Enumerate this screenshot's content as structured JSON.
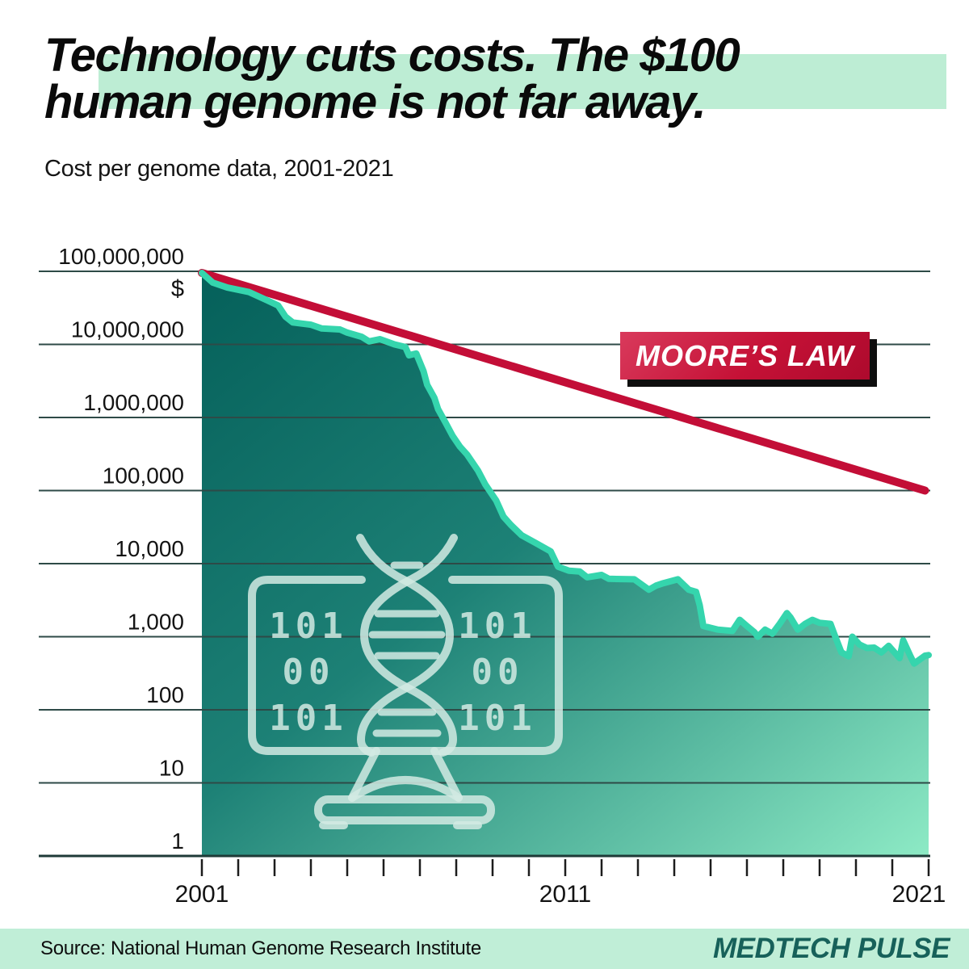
{
  "header": {
    "title_line1": "Technology cuts costs. The $100",
    "title_line2": "human genome is not far away.",
    "subtitle": "Cost per genome data, 2001-2021"
  },
  "moore_label": "MOORE’S LAW",
  "footer": {
    "source": "Source: National Human Genome Research Institute",
    "brand": "MEDTECH PULSE"
  },
  "icon": {
    "name": "dna-computer-icon",
    "binary_rows": [
      "101",
      "00",
      "101"
    ]
  },
  "theme": {
    "mint_highlight": "#bdedd4",
    "area_gradient_dark": "#05605a",
    "area_gradient_mid": "#1d8176",
    "area_gradient_light": "#8deac5",
    "curve_stroke": "#35d5ad",
    "moore_red": "#c30e37",
    "grid_color": "#2e4a47",
    "baseline_color": "#1e3a37",
    "axis_text": "#131313",
    "icon_stroke": "rgba(210,234,227,0.85)",
    "brand_color": "#17615a"
  },
  "chart_data": {
    "type": "area",
    "title": "Cost per genome data, 2001-2021",
    "x_axis": {
      "range": [
        2001,
        2021
      ],
      "tick_interval": 1,
      "labeled_ticks": [
        "2001",
        "2011",
        "2021"
      ],
      "labeled_tick_years": [
        2001,
        2011,
        2021
      ]
    },
    "y_axis": {
      "scale": "log",
      "unit": "$",
      "range": [
        1,
        100000000
      ],
      "ticks": [
        "1",
        "10",
        "100",
        "1,000",
        "10,000",
        "100,000",
        "1,000,000",
        "10,000,000",
        "100,000,000"
      ]
    },
    "grid": true,
    "legend": "none",
    "series": [
      {
        "name": "Cost per genome",
        "type": "area",
        "points": [
          [
            2001.0,
            95000000
          ],
          [
            2001.3,
            70000000
          ],
          [
            2001.7,
            60000000
          ],
          [
            2002.3,
            52000000
          ],
          [
            2002.8,
            40000000
          ],
          [
            2003.1,
            34000000
          ],
          [
            2003.3,
            24000000
          ],
          [
            2003.5,
            20000000
          ],
          [
            2004.0,
            18600000
          ],
          [
            2004.3,
            16500000
          ],
          [
            2004.8,
            16000000
          ],
          [
            2005.0,
            14500000
          ],
          [
            2005.4,
            12700000
          ],
          [
            2005.6,
            11000000
          ],
          [
            2005.9,
            11800000
          ],
          [
            2006.3,
            10000000
          ],
          [
            2006.6,
            9200000
          ],
          [
            2006.7,
            7100000
          ],
          [
            2006.9,
            7500000
          ],
          [
            2007.1,
            4300000
          ],
          [
            2007.2,
            2800000
          ],
          [
            2007.4,
            1850000
          ],
          [
            2007.5,
            1300000
          ],
          [
            2007.7,
            860000
          ],
          [
            2007.9,
            560000
          ],
          [
            2008.1,
            400000
          ],
          [
            2008.3,
            310000
          ],
          [
            2008.6,
            187000
          ],
          [
            2008.8,
            121000
          ],
          [
            2009.1,
            73000
          ],
          [
            2009.3,
            44000
          ],
          [
            2009.5,
            34000
          ],
          [
            2009.8,
            24400
          ],
          [
            2010.2,
            19000
          ],
          [
            2010.6,
            14700
          ],
          [
            2010.8,
            9100
          ],
          [
            2011.1,
            8000
          ],
          [
            2011.4,
            7800
          ],
          [
            2011.6,
            6500
          ],
          [
            2012.0,
            7000
          ],
          [
            2012.2,
            6200
          ],
          [
            2012.9,
            6100
          ],
          [
            2013.3,
            4400
          ],
          [
            2013.5,
            5000
          ],
          [
            2013.7,
            5400
          ],
          [
            2014.1,
            6100
          ],
          [
            2014.4,
            4400
          ],
          [
            2014.6,
            4100
          ],
          [
            2014.7,
            2700
          ],
          [
            2014.8,
            1400
          ],
          [
            2015.2,
            1250
          ],
          [
            2015.6,
            1200
          ],
          [
            2015.8,
            1700
          ],
          [
            2016.0,
            1400
          ],
          [
            2016.2,
            1160
          ],
          [
            2016.3,
            1000
          ],
          [
            2016.5,
            1250
          ],
          [
            2016.7,
            1100
          ],
          [
            2016.9,
            1500
          ],
          [
            2017.1,
            2100
          ],
          [
            2017.2,
            1830
          ],
          [
            2017.4,
            1250
          ],
          [
            2017.6,
            1500
          ],
          [
            2017.8,
            1700
          ],
          [
            2018.0,
            1550
          ],
          [
            2018.3,
            1500
          ],
          [
            2018.4,
            1100
          ],
          [
            2018.6,
            610
          ],
          [
            2018.8,
            540
          ],
          [
            2018.9,
            1000
          ],
          [
            2019.1,
            780
          ],
          [
            2019.3,
            700
          ],
          [
            2019.5,
            710
          ],
          [
            2019.7,
            610
          ],
          [
            2019.9,
            750
          ],
          [
            2020.2,
            510
          ],
          [
            2020.3,
            890
          ],
          [
            2020.5,
            540
          ],
          [
            2020.6,
            430
          ],
          [
            2020.9,
            550
          ],
          [
            2021.0,
            560
          ]
        ]
      },
      {
        "name": "Moore's Law",
        "type": "line",
        "points": [
          [
            2001.0,
            95000000
          ],
          [
            2020.9,
            100000
          ]
        ]
      }
    ]
  }
}
